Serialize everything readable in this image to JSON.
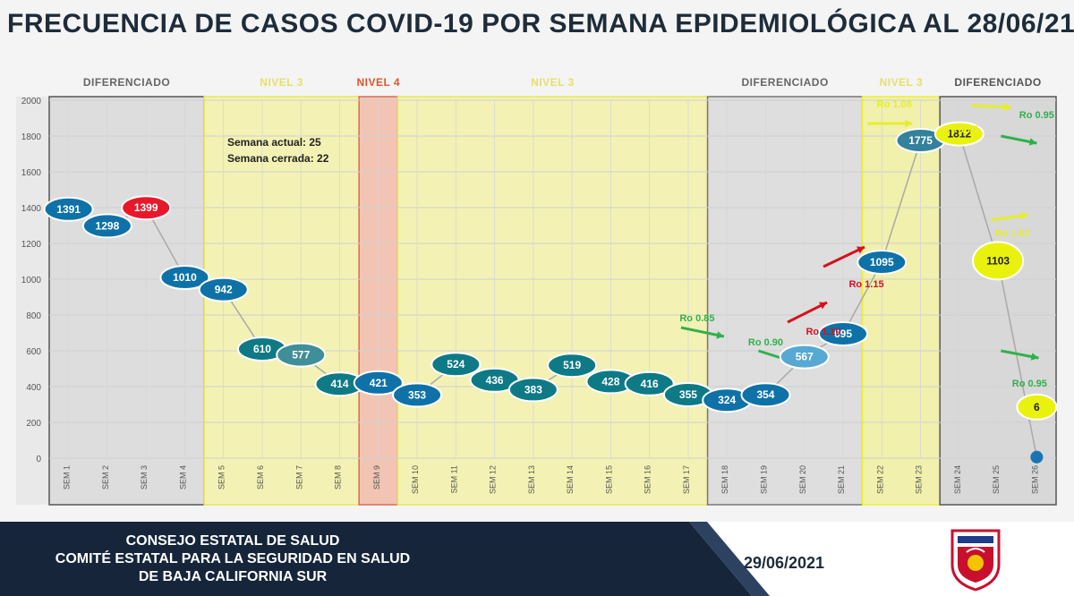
{
  "title": "FRECUENCIA DE CASOS COVID-19 POR SEMANA EPIDEMIOLÓGICA AL 28/06/21",
  "chart_data": {
    "type": "line",
    "categories": [
      "SEM 1",
      "SEM 2",
      "SEM 3",
      "SEM 4",
      "SEM 5",
      "SEM 6",
      "SEM 7",
      "SEM 8",
      "SEM 9",
      "SEM 10",
      "SEM 11",
      "SEM 12",
      "SEM 13",
      "SEM 14",
      "SEM 15",
      "SEM 16",
      "SEM 17",
      "SEM 18",
      "SEM 19",
      "SEM 20",
      "SEM 21",
      "SEM 22",
      "SEM 23",
      "SEM 24",
      "SEM 25",
      "SEM 26"
    ],
    "values": [
      1391,
      1298,
      1399,
      1010,
      942,
      610,
      577,
      414,
      421,
      353,
      524,
      436,
      383,
      519,
      428,
      416,
      355,
      324,
      354,
      567,
      695,
      1095,
      1775,
      1812,
      1103,
      6
    ],
    "labels": [
      "1391",
      "1298",
      "1399",
      "1010",
      "942",
      "610",
      "577",
      "414",
      "421",
      "353",
      "524",
      "436",
      "383",
      "519",
      "428",
      "416",
      "355",
      "324",
      "354",
      "567",
      "695",
      "1095",
      "1775",
      "1812",
      "1103",
      "6"
    ],
    "point_colors": [
      "#0e72a8",
      "#0e72a8",
      "#e8182a",
      "#0e72a8",
      "#0e72a8",
      "#0e7a86",
      "#3f8e98",
      "#0e7a86",
      "#0e72a8",
      "#0e72a8",
      "#0e7a86",
      "#0e7a86",
      "#0e7a86",
      "#0e7a86",
      "#0e7a86",
      "#0e7a86",
      "#0e7a86",
      "#0e72a8",
      "#0e72a8",
      "#57a9d4",
      "#0e72a8",
      "#0e72a8",
      "#35809a",
      "#e9f20d",
      "#e9f20d",
      "#1874b5"
    ],
    "ylim": [
      0,
      2000
    ],
    "yticks": [
      "0",
      "200",
      "400",
      "600",
      "800",
      "1000",
      "1200",
      "1400",
      "1600",
      "1800",
      "2000"
    ],
    "grid": true,
    "zones": [
      {
        "label": "DIFERENCIADO",
        "from": 1,
        "to": 4,
        "fill": "#dddddd",
        "stroke": "#555555",
        "text": "#666666"
      },
      {
        "label": "NIVEL 3",
        "from": 5,
        "to": 8,
        "fill": "#f3f2b4",
        "stroke": "#e8e65a",
        "text": "#e6df6a"
      },
      {
        "label": "NIVEL 4",
        "from": 9,
        "to": 9,
        "fill": "#f2c4b4",
        "stroke": "#d96b53",
        "text": "#e0562a"
      },
      {
        "label": "NIVEL 3",
        "from": 10,
        "to": 17,
        "fill": "#f3f2b4",
        "stroke": "#e8e65a",
        "text": "#e6df6a"
      },
      {
        "label": "DIFERENCIADO",
        "from": 18,
        "to": 21,
        "fill": "#dedede",
        "stroke": "#777777",
        "text": "#666666"
      },
      {
        "label": "NIVEL 3",
        "from": 22,
        "to": 23,
        "fill": "#f1f0ad",
        "stroke": "#eef032",
        "text": "#e6df6a"
      },
      {
        "label": "DIFERENCIADO",
        "from": 24,
        "to": 26,
        "fill": "#d8d8d8",
        "stroke": "#555555",
        "text": "#555555"
      }
    ],
    "annotations": [
      "Semana actual: 25",
      "Semana cerrada: 22"
    ],
    "ro_labels": [
      {
        "text": "Ro 0.85",
        "color": "#2fb14a"
      },
      {
        "text": "Ro 0.90",
        "color": "#2fb14a"
      },
      {
        "text": "Ro 1.10",
        "color": "#d4121f"
      },
      {
        "text": "Ro 1.15",
        "color": "#d4121f"
      },
      {
        "text": "Ro 1.08",
        "color": "#e6ee2a"
      },
      {
        "text": "Ro 1.05",
        "color": "#e6ee2a"
      },
      {
        "text": "Ro 1.02",
        "color": "#e6ee2a"
      },
      {
        "text": "Ro 0.95",
        "color": "#2fb14a"
      },
      {
        "text": "Ro 0.95",
        "color": "#2fb14a"
      }
    ]
  },
  "footer": {
    "lines": [
      "CONSEJO ESTATAL DE SALUD",
      "COMITÉ ESTATAL PARA LA SEGURIDAD EN SALUD",
      "DE BAJA CALIFORNIA SUR"
    ],
    "date": "29/06/2021",
    "colors": {
      "dark": "#16253a",
      "accent": "#1f3147"
    }
  }
}
